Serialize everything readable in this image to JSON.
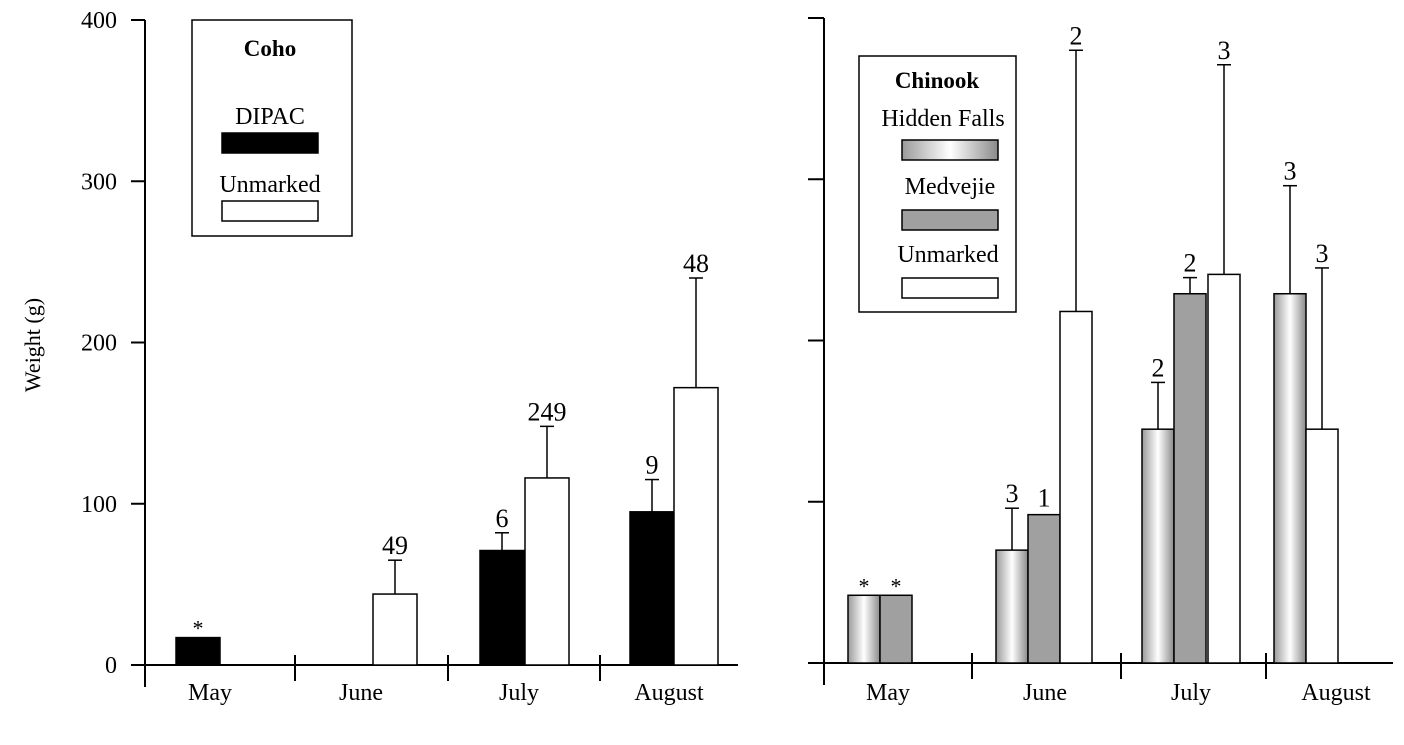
{
  "chart_data": [
    {
      "type": "bar",
      "ylabel": "Weight (g)",
      "ylim": [
        0,
        400
      ],
      "yticks": [
        "0",
        "100",
        "200",
        "300",
        "400"
      ],
      "categories": [
        "May",
        "June",
        "July",
        "August"
      ],
      "legend": {
        "title": "Coho",
        "placement": "top-left"
      },
      "series": [
        {
          "name": "DIPAC",
          "fill": "#000000",
          "values": [
            17,
            0,
            71,
            95
          ],
          "error_upper": [
            null,
            null,
            82,
            115
          ],
          "n_labels": [
            "*",
            "",
            "6",
            "9"
          ]
        },
        {
          "name": "Unmarked",
          "fill": "#ffffff",
          "values": [
            0,
            44,
            116,
            172
          ],
          "error_upper": [
            null,
            65,
            148,
            240
          ],
          "n_labels": [
            "",
            "49",
            "249",
            "48"
          ]
        }
      ]
    },
    {
      "type": "bar",
      "ylabel": "",
      "ylim": [
        0,
        400
      ],
      "yticks": [
        "",
        "",
        "",
        "",
        ""
      ],
      "categories": [
        "May",
        "June",
        "July",
        "August"
      ],
      "legend": {
        "title": "Chinook",
        "placement": "top-left"
      },
      "series": [
        {
          "name": "Hidden Falls",
          "fill": "gradient-gray",
          "values": [
            42,
            70,
            145,
            229
          ],
          "error_upper": [
            null,
            96,
            174,
            296
          ],
          "n_labels": [
            "*",
            "3",
            "2",
            "3"
          ]
        },
        {
          "name": "Medvejie",
          "fill": "#a0a0a0",
          "values": [
            42,
            92,
            229,
            null
          ],
          "error_upper": [
            null,
            null,
            239,
            null
          ],
          "n_labels": [
            "*",
            "1",
            "2",
            ""
          ]
        },
        {
          "name": "Unmarked",
          "fill": "#ffffff",
          "values": [
            null,
            218,
            241,
            145
          ],
          "error_upper": [
            null,
            380,
            371,
            245
          ],
          "n_labels": [
            "",
            "2",
            "3",
            "3"
          ]
        }
      ]
    }
  ]
}
